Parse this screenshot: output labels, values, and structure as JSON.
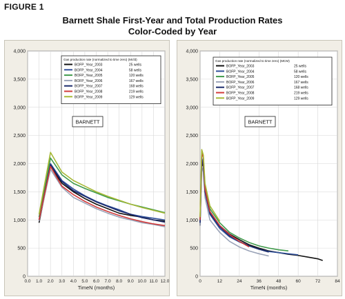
{
  "figure": {
    "label": "FIGURE 1",
    "title_line1": "Barnett Shale First-Year and Total Production Rates",
    "title_line2": "Color-Coded by Year"
  },
  "chart_data": [
    {
      "type": "line",
      "xlabel": "TimeN (months)",
      "xlim": [
        0,
        12
      ],
      "ylim": [
        0,
        4000
      ],
      "xticks": [
        "0.0",
        "1.0",
        "2.0",
        "3.0",
        "4.0",
        "5.0",
        "6.0",
        "7.0",
        "8.0",
        "9.0",
        "10.0",
        "11.0",
        "12.0"
      ],
      "yticks": [
        "0",
        "500",
        "1,000",
        "1,500",
        "2,000",
        "2,500",
        "3,000",
        "3,500",
        "4,000"
      ],
      "annotation": "BARNETT",
      "legend_title": "Gas production rate (normalized to time zero) (Mcfd)",
      "legend_position": "top-right",
      "x": [
        1,
        2,
        3,
        4,
        5,
        6,
        7,
        8,
        9,
        10,
        11,
        12
      ],
      "series": [
        {
          "name": "BOFP_Year_2003",
          "wells": "25 wells",
          "color": "#111111",
          "values": [
            950,
            1950,
            1650,
            1500,
            1380,
            1280,
            1200,
            1120,
            1080,
            1050,
            1000,
            980
          ]
        },
        {
          "name": "BOFP_Year_2004",
          "wells": "58 wells",
          "color": "#2f4f9a",
          "values": [
            1000,
            2000,
            1700,
            1550,
            1430,
            1330,
            1250,
            1180,
            1100,
            1060,
            1030,
            1000
          ]
        },
        {
          "name": "BOFP_Year_2005",
          "wells": "120 wells",
          "color": "#3f9a4a",
          "values": [
            1050,
            2100,
            1800,
            1650,
            1560,
            1480,
            1400,
            1340,
            1280,
            1230,
            1180,
            1130
          ]
        },
        {
          "name": "BOFP_Year_2006",
          "wells": "167 wells",
          "color": "#9aa3b8",
          "values": [
            980,
            1900,
            1580,
            1400,
            1300,
            1200,
            1120,
            1050,
            1000,
            950,
            920,
            880
          ]
        },
        {
          "name": "BOFP_Year_2007",
          "wells": "168 wells",
          "color": "#1a2a6c",
          "values": [
            1000,
            1980,
            1680,
            1520,
            1420,
            1320,
            1240,
            1160,
            1100,
            1040,
            1000,
            960
          ]
        },
        {
          "name": "BOFP_Year_2008",
          "wells": "219 wells",
          "color": "#d23a3a",
          "values": [
            1000,
            1950,
            1600,
            1450,
            1330,
            1230,
            1150,
            1080,
            1020,
            970,
            930,
            900
          ]
        },
        {
          "name": "BOFP_Year_2009",
          "wells": "129 wells",
          "color": "#a6b836",
          "values": [
            1100,
            2200,
            1850,
            1700,
            1600,
            1500,
            1420,
            1350,
            1280,
            1220,
            1170,
            1120
          ]
        }
      ]
    },
    {
      "type": "line",
      "xlabel": "TimeN (months)",
      "xlim": [
        0,
        84
      ],
      "ylim": [
        0,
        4000
      ],
      "xticks": [
        "0",
        "12",
        "24",
        "36",
        "48",
        "60",
        "72",
        "84"
      ],
      "yticks": [
        "0",
        "500",
        "1,000",
        "1,500",
        "2,000",
        "2,500",
        "3,000",
        "3,500",
        "4,000"
      ],
      "annotation": "BARNETT",
      "legend_title": "Gas production rate (normalized to time zero) (MCM)",
      "legend_position": "top-right",
      "series": [
        {
          "name": "BOFP_Year_2003",
          "wells": "25 wells",
          "color": "#111111",
          "points": [
            [
              0,
              900
            ],
            [
              1,
              2000
            ],
            [
              2,
              1950
            ],
            [
              3,
              1500
            ],
            [
              6,
              1150
            ],
            [
              12,
              900
            ],
            [
              18,
              750
            ],
            [
              24,
              650
            ],
            [
              30,
              560
            ],
            [
              36,
              500
            ],
            [
              42,
              450
            ],
            [
              48,
              420
            ],
            [
              54,
              390
            ],
            [
              60,
              370
            ],
            [
              66,
              340
            ],
            [
              72,
              310
            ],
            [
              75,
              280
            ]
          ]
        },
        {
          "name": "BOFP_Year_2004",
          "wells": "58 wells",
          "color": "#2f4f9a",
          "points": [
            [
              0,
              950
            ],
            [
              1,
              2100
            ],
            [
              2,
              2000
            ],
            [
              3,
              1500
            ],
            [
              6,
              1100
            ],
            [
              12,
              850
            ],
            [
              18,
              700
            ],
            [
              24,
              610
            ],
            [
              30,
              540
            ],
            [
              36,
              480
            ],
            [
              42,
              440
            ],
            [
              48,
              420
            ],
            [
              54,
              400
            ],
            [
              60,
              380
            ]
          ]
        },
        {
          "name": "BOFP_Year_2005",
          "wells": "120 wells",
          "color": "#3f9a4a",
          "points": [
            [
              0,
              1000
            ],
            [
              1,
              2200
            ],
            [
              2,
              2100
            ],
            [
              3,
              1600
            ],
            [
              6,
              1200
            ],
            [
              12,
              950
            ],
            [
              18,
              780
            ],
            [
              24,
              680
            ],
            [
              30,
              600
            ],
            [
              36,
              540
            ],
            [
              42,
              500
            ],
            [
              48,
              470
            ],
            [
              54,
              450
            ]
          ]
        },
        {
          "name": "BOFP_Year_2006",
          "wells": "167 wells",
          "color": "#9aa3b8",
          "points": [
            [
              0,
              900
            ],
            [
              1,
              1950
            ],
            [
              2,
              1850
            ],
            [
              3,
              1400
            ],
            [
              6,
              1000
            ],
            [
              12,
              780
            ],
            [
              18,
              620
            ],
            [
              24,
              520
            ],
            [
              30,
              450
            ],
            [
              36,
              400
            ],
            [
              42,
              360
            ]
          ]
        },
        {
          "name": "BOFP_Year_2007",
          "wells": "168 wells",
          "color": "#1a2a6c",
          "points": [
            [
              0,
              950
            ],
            [
              1,
              2050
            ],
            [
              2,
              1950
            ],
            [
              3,
              1500
            ],
            [
              6,
              1120
            ],
            [
              12,
              880
            ],
            [
              18,
              720
            ],
            [
              24,
              620
            ],
            [
              30,
              540
            ],
            [
              36,
              480
            ],
            [
              42,
              430
            ]
          ]
        },
        {
          "name": "BOFP_Year_2008",
          "wells": "219 wells",
          "color": "#d23a3a",
          "points": [
            [
              0,
              1000
            ],
            [
              1,
              2200
            ],
            [
              2,
              2100
            ],
            [
              3,
              1550
            ],
            [
              6,
              1150
            ],
            [
              12,
              900
            ],
            [
              18,
              740
            ],
            [
              24,
              620
            ],
            [
              30,
              520
            ]
          ]
        },
        {
          "name": "BOFP_Year_2009",
          "wells": "129 wells",
          "color": "#a6b836",
          "points": [
            [
              0,
              1050
            ],
            [
              1,
              2250
            ],
            [
              2,
              2150
            ],
            [
              3,
              1650
            ],
            [
              6,
              1250
            ],
            [
              12,
              980
            ]
          ]
        }
      ]
    }
  ]
}
